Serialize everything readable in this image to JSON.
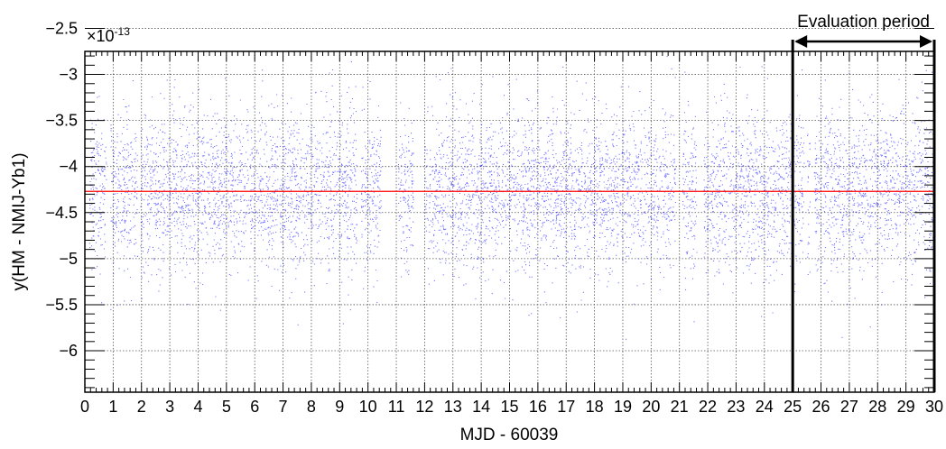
{
  "chart_data": {
    "type": "scatter",
    "xlabel": "MJD - 60039",
    "ylabel": "y(HM - NMIJ-Yb1)",
    "y_multiplier_base": "×10",
    "y_multiplier_exp": "-13",
    "xlim": [
      0,
      30
    ],
    "ylim": [
      -6.45,
      -2.75
    ],
    "x_ticks": [
      0,
      1,
      2,
      3,
      4,
      5,
      6,
      7,
      8,
      9,
      10,
      11,
      12,
      13,
      14,
      15,
      16,
      17,
      18,
      19,
      20,
      21,
      22,
      23,
      24,
      25,
      26,
      27,
      28,
      29,
      30
    ],
    "x_tick_labels": [
      "0",
      "1",
      "2",
      "3",
      "4",
      "5",
      "6",
      "7",
      "8",
      "9",
      "10",
      "11",
      "12",
      "13",
      "14",
      "15",
      "16",
      "17",
      "18",
      "19",
      "20",
      "21",
      "22",
      "23",
      "24",
      "25",
      "26",
      "27",
      "28",
      "29",
      "30"
    ],
    "y_ticks": [
      -6,
      -5.5,
      -5,
      -4.5,
      -4,
      -3.5,
      -3,
      -2.5
    ],
    "y_tick_labels": [
      "−6",
      "−5.5",
      "−5",
      "−4.5",
      "−4",
      "−3.5",
      "−3",
      "−2.5"
    ],
    "grid": true,
    "point_color": "#0000ff",
    "mean_line": {
      "y": -4.27,
      "color": "#ff0000"
    },
    "data_segments": [
      [
        0.15,
        0.75
      ],
      [
        0.9,
        1.85
      ],
      [
        1.95,
        6.8
      ],
      [
        6.85,
        9.6
      ],
      [
        9.75,
        10.45
      ],
      [
        11.05,
        11.6
      ],
      [
        12.0,
        20.85
      ],
      [
        21.1,
        21.6
      ],
      [
        21.85,
        25.4
      ],
      [
        25.5,
        25.6
      ],
      [
        25.75,
        30.0
      ]
    ],
    "spread": {
      "center": -4.27,
      "sigma": 0.42
    },
    "evaluation_period": {
      "label": "Evaluation period",
      "x_start": 25,
      "x_end": 30
    }
  }
}
